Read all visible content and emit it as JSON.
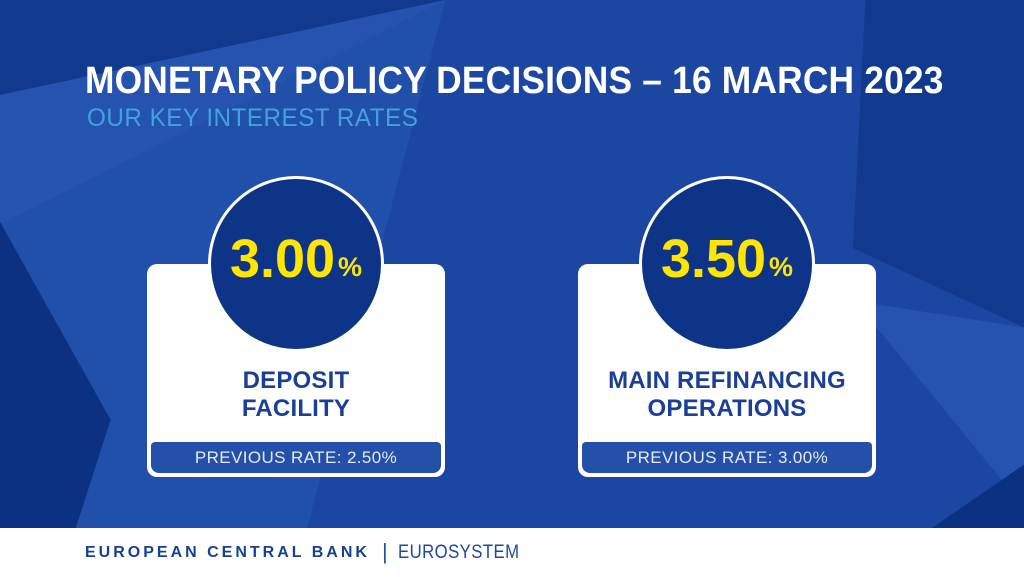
{
  "header": {
    "title": "MONETARY POLICY DECISIONS – 16 MARCH 2023",
    "subtitle": "OUR KEY INTEREST RATES"
  },
  "cards": [
    {
      "rate": "3.00",
      "unit": "%",
      "label": "DEPOSIT\nFACILITY",
      "previous": "PREVIOUS RATE: 2.50%"
    },
    {
      "rate": "3.50",
      "unit": "%",
      "label": "MAIN REFINANCING\nOPERATIONS",
      "previous": "PREVIOUS RATE: 3.00%"
    }
  ],
  "footer": {
    "org": "EUROPEAN CENTRAL BANK",
    "separator": "|",
    "system": "EUROSYSTEM"
  },
  "colors": {
    "base_blue": "#1b46a2",
    "mid_dark_shape": "#113a8e",
    "light_blue_shape": "#2553af",
    "light_band_shape": "#2150ab",
    "dark_blue_shape": "#0c3183",
    "circle_blue": "#0e3487",
    "bar_blue": "#2450a9",
    "accent_yellow": "#ffe600",
    "title_white": "#ffffff",
    "subtitle_blue": "#3fa3de",
    "label_blue": "#1a3f97",
    "footer_blue": "#17418f",
    "card_white": "#ffffff"
  }
}
